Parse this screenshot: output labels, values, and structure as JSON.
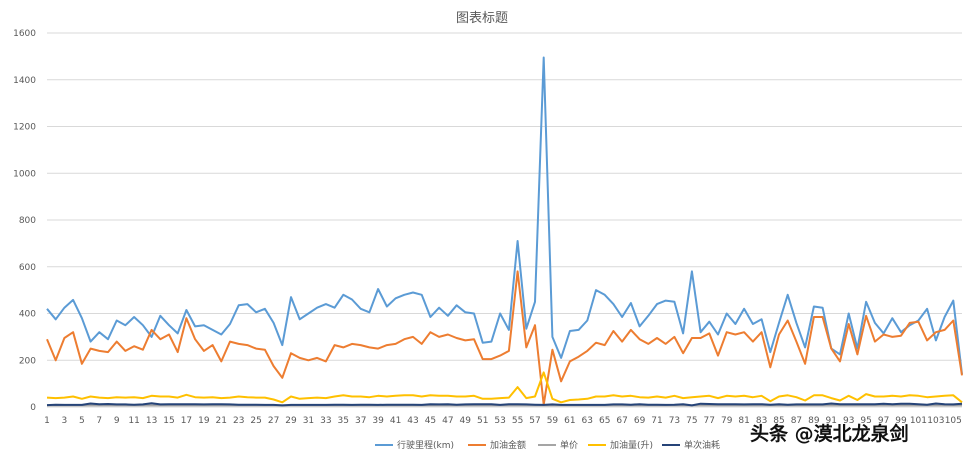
{
  "chart_data": {
    "type": "line",
    "title": "图表标题",
    "ylim": [
      0,
      1600
    ],
    "yticks": [
      0,
      200,
      400,
      600,
      800,
      1000,
      1200,
      1400,
      1600
    ],
    "x": [
      1,
      2,
      3,
      4,
      5,
      6,
      7,
      8,
      9,
      10,
      11,
      12,
      13,
      14,
      15,
      16,
      17,
      18,
      19,
      20,
      21,
      22,
      23,
      24,
      25,
      26,
      27,
      28,
      29,
      30,
      31,
      32,
      33,
      34,
      35,
      36,
      37,
      38,
      39,
      40,
      41,
      42,
      43,
      44,
      45,
      46,
      47,
      48,
      49,
      50,
      51,
      52,
      53,
      54,
      55,
      56,
      57,
      58,
      59,
      60,
      61,
      62,
      63,
      64,
      65,
      66,
      67,
      68,
      69,
      70,
      71,
      72,
      73,
      74,
      75,
      76,
      77,
      78,
      79,
      80,
      81,
      82,
      83,
      84,
      85,
      86,
      87,
      88,
      89,
      90,
      91,
      92,
      93,
      94,
      95,
      96,
      97,
      98,
      99,
      100,
      101,
      102,
      103,
      104,
      105,
      106
    ],
    "x_tick_labels": [
      "1",
      "3",
      "5",
      "7",
      "9",
      "11",
      "13",
      "15",
      "17",
      "19",
      "21",
      "23",
      "25",
      "27",
      "29",
      "31",
      "33",
      "35",
      "37",
      "39",
      "41",
      "43",
      "45",
      "47",
      "49",
      "51",
      "53",
      "55",
      "57",
      "59",
      "61",
      "63",
      "65",
      "67",
      "69",
      "71",
      "73",
      "75",
      "77",
      "79",
      "81",
      "83",
      "85",
      "87",
      "89",
      "91",
      "93",
      "95",
      "97",
      "99",
      "101",
      "103",
      "105"
    ],
    "grid": "horizontal",
    "legend_position": "bottom",
    "series": [
      {
        "name": "行驶里程(km)",
        "color": "#5B9BD5",
        "values": [
          420,
          375,
          425,
          458,
          380,
          280,
          320,
          290,
          370,
          350,
          385,
          350,
          300,
          390,
          350,
          315,
          415,
          345,
          350,
          330,
          310,
          355,
          435,
          440,
          405,
          420,
          360,
          265,
          470,
          375,
          400,
          425,
          440,
          425,
          480,
          460,
          420,
          405,
          505,
          430,
          465,
          480,
          490,
          480,
          385,
          425,
          390,
          435,
          405,
          400,
          275,
          280,
          400,
          330,
          710,
          335,
          450,
          1495,
          300,
          210,
          325,
          330,
          370,
          500,
          480,
          440,
          385,
          445,
          345,
          390,
          440,
          455,
          450,
          315,
          580,
          320,
          365,
          310,
          400,
          355,
          420,
          355,
          375,
          235,
          360,
          480,
          360,
          255,
          430,
          425,
          250,
          225,
          400,
          250,
          450,
          360,
          315,
          380,
          320,
          350,
          370,
          420,
          285,
          385,
          455,
          140
        ]
      },
      {
        "name": "加油金额",
        "color": "#ED7D31",
        "values": [
          290,
          200,
          295,
          320,
          185,
          250,
          240,
          235,
          280,
          240,
          260,
          245,
          330,
          290,
          310,
          235,
          380,
          290,
          240,
          265,
          195,
          280,
          270,
          265,
          250,
          245,
          175,
          125,
          230,
          210,
          200,
          210,
          195,
          265,
          255,
          270,
          265,
          255,
          250,
          265,
          270,
          290,
          300,
          270,
          320,
          300,
          310,
          295,
          285,
          290,
          205,
          205,
          220,
          240,
          580,
          255,
          350,
          10,
          245,
          110,
          195,
          215,
          240,
          275,
          265,
          325,
          280,
          330,
          290,
          270,
          295,
          270,
          300,
          230,
          295,
          295,
          315,
          220,
          320,
          310,
          320,
          280,
          320,
          170,
          310,
          370,
          280,
          185,
          385,
          385,
          250,
          195,
          355,
          225,
          390,
          280,
          310,
          300,
          305,
          360,
          365,
          285,
          320,
          330,
          370,
          135
        ]
      },
      {
        "name": "单价",
        "color": "#A5A5A5",
        "values": [
          7,
          7,
          7,
          7,
          7,
          7,
          7,
          7,
          7,
          7,
          7,
          7,
          7,
          7,
          7,
          7,
          7,
          7,
          7,
          7,
          7,
          7,
          7,
          7,
          7,
          7,
          7,
          7,
          7,
          7,
          7,
          7,
          7,
          7,
          7,
          7,
          7,
          7,
          7,
          7,
          7,
          7,
          7,
          7,
          7,
          7,
          7,
          7,
          7,
          7,
          7,
          7,
          7,
          7,
          7,
          7,
          7,
          7,
          7,
          7,
          7,
          7,
          7,
          7,
          7,
          7,
          7,
          7,
          7,
          7,
          7,
          7,
          7,
          7,
          7,
          7,
          7,
          7,
          7,
          7,
          7,
          7,
          7,
          7,
          7,
          7,
          7,
          7,
          7,
          7,
          7,
          7,
          7,
          7,
          7,
          7,
          7,
          7,
          7,
          7,
          7,
          7,
          7,
          7,
          7,
          7
        ]
      },
      {
        "name": "加油量(升)",
        "color": "#FFC000",
        "values": [
          40,
          38,
          40,
          45,
          35,
          45,
          40,
          38,
          42,
          40,
          42,
          38,
          48,
          45,
          45,
          40,
          52,
          42,
          40,
          42,
          38,
          40,
          45,
          42,
          40,
          40,
          32,
          20,
          45,
          35,
          38,
          40,
          38,
          45,
          50,
          45,
          45,
          42,
          48,
          45,
          48,
          50,
          50,
          45,
          50,
          48,
          48,
          45,
          45,
          48,
          35,
          35,
          38,
          40,
          85,
          38,
          45,
          148,
          35,
          20,
          30,
          32,
          35,
          45,
          45,
          50,
          45,
          48,
          42,
          40,
          45,
          40,
          48,
          38,
          42,
          45,
          48,
          38,
          48,
          45,
          48,
          42,
          48,
          25,
          45,
          50,
          42,
          28,
          50,
          50,
          38,
          28,
          48,
          30,
          55,
          45,
          45,
          48,
          45,
          50,
          48,
          42,
          45,
          48,
          50,
          20
        ]
      },
      {
        "name": "单次油耗",
        "color": "#264478",
        "values": [
          8,
          10,
          9,
          9,
          9,
          15,
          12,
          13,
          11,
          11,
          10,
          11,
          16,
          11,
          12,
          12,
          12,
          12,
          11,
          12,
          12,
          11,
          10,
          10,
          10,
          9,
          9,
          7,
          9,
          9,
          9,
          9,
          9,
          10,
          10,
          9,
          10,
          10,
          9,
          10,
          10,
          10,
          10,
          9,
          12,
          11,
          12,
          10,
          11,
          12,
          12,
          12,
          9,
          12,
          12,
          11,
          10,
          9,
          11,
          9,
          9,
          9,
          9,
          9,
          9,
          11,
          11,
          10,
          12,
          10,
          10,
          9,
          10,
          12,
          7,
          14,
          13,
          12,
          12,
          12,
          11,
          12,
          12,
          10,
          12,
          10,
          11,
          11,
          11,
          11,
          15,
          12,
          12,
          12,
          12,
          12,
          14,
          12,
          14,
          14,
          12,
          10,
          15,
          12,
          11,
          14
        ]
      }
    ]
  },
  "watermark": "头条 @漠北龙泉剑"
}
